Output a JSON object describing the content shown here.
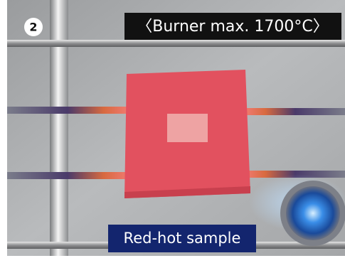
{
  "badge": "2",
  "top_label": "〈Burner max. 1700°C〉",
  "caption": "Red-hot sample"
}
